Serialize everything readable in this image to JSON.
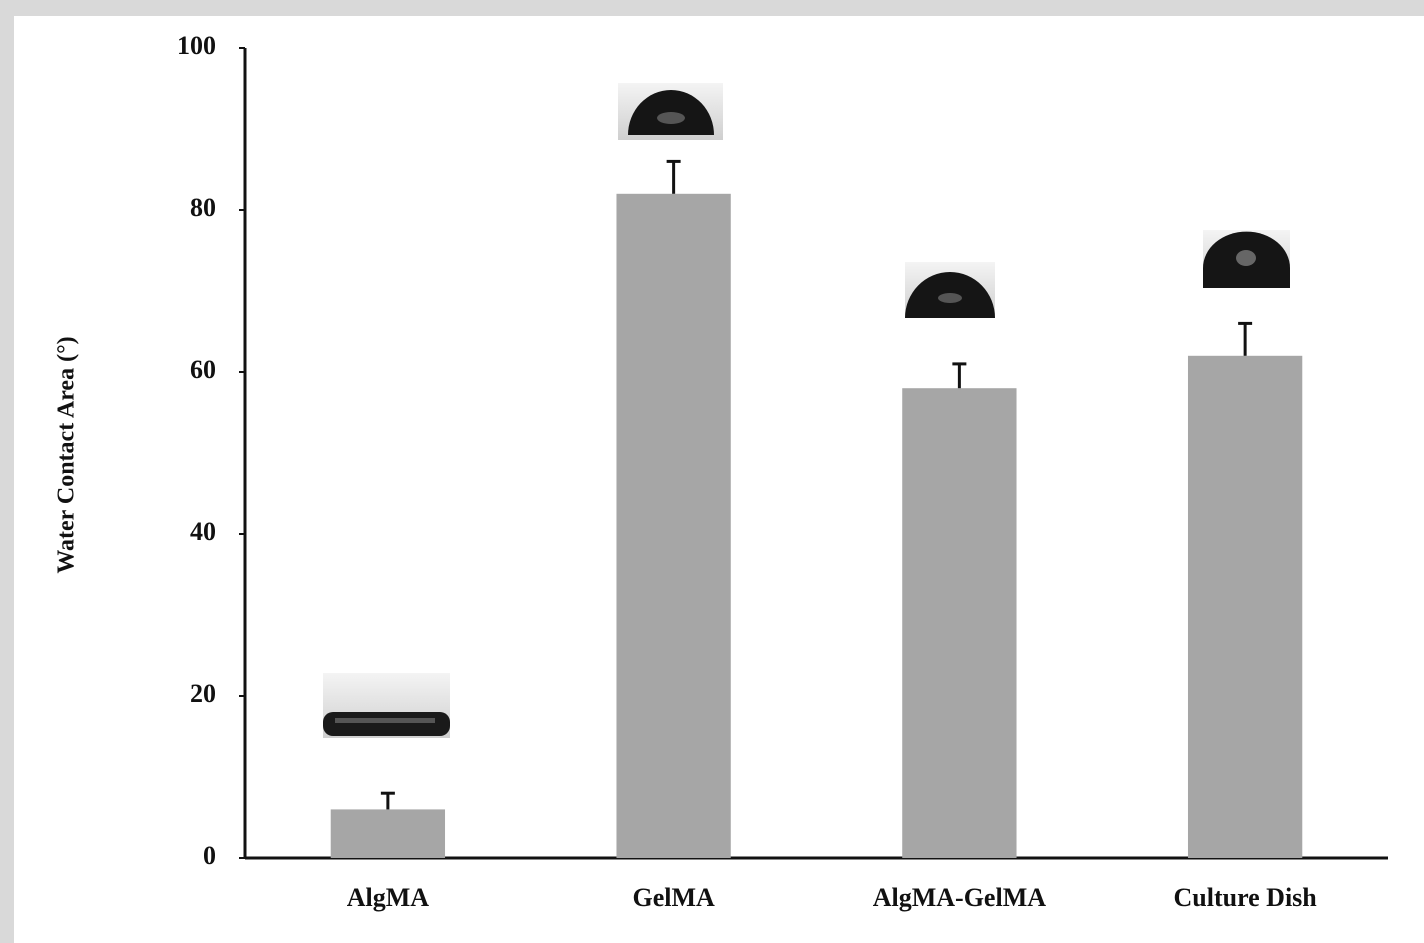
{
  "chart_data": {
    "type": "bar",
    "y_label": "Water Contact Area (°)",
    "categories": [
      "AlgMA",
      "GelMA",
      "AlgMA-GelMA",
      "Culture Dish"
    ],
    "values": [
      6,
      82,
      58,
      62
    ],
    "errors": [
      2,
      4,
      3,
      4
    ],
    "color": "#a6a6a6",
    "ylim": [
      0,
      100
    ],
    "yticks": [
      0,
      20,
      40,
      60,
      80,
      100
    ],
    "grid": false
  }
}
